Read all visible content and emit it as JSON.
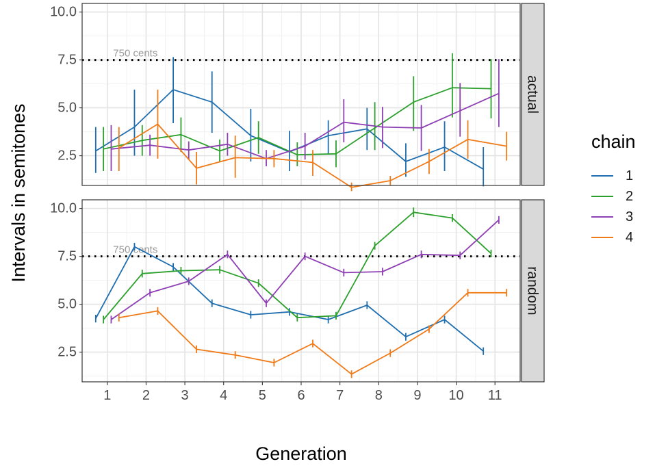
{
  "chart_data": {
    "type": "line",
    "xlabel": "Generation",
    "ylabel": "Intervals in semitones",
    "x_ticks": [
      1,
      2,
      3,
      4,
      5,
      6,
      7,
      8,
      9,
      10,
      11
    ],
    "x_tick_labels": [
      "1",
      "2",
      "3",
      "4",
      "5",
      "6",
      "7",
      "8",
      "9",
      "10",
      "11"
    ],
    "xlim": [
      0.35,
      11.65
    ],
    "y_ticks": [
      2.5,
      5.0,
      7.5,
      10.0
    ],
    "y_tick_labels": [
      "2.5",
      "5.0",
      "7.5",
      "10.0"
    ],
    "grid": true,
    "legend": {
      "title": "chain",
      "position": "right",
      "entries": [
        {
          "label": "1",
          "color": "#1f6fb0"
        },
        {
          "label": "2",
          "color": "#2ca02c"
        },
        {
          "label": "3",
          "color": "#8e3fb3"
        },
        {
          "label": "4",
          "color": "#f07a17"
        }
      ]
    },
    "colors": {
      "1": "#1f6fb0",
      "2": "#2ca02c",
      "3": "#8e3fb3",
      "4": "#f07a17"
    },
    "x_offsets": {
      "1": -0.3,
      "2": -0.1,
      "3": 0.1,
      "4": 0.3
    },
    "reference_line": {
      "y": 7.5,
      "label": "750 cents",
      "style": "dotted"
    },
    "panels": [
      {
        "strip": "actual",
        "ylim": [
          0.95,
          10.45
        ],
        "series": [
          {
            "name": "1",
            "points": [
              {
                "x": 1,
                "y": 2.75,
                "lo": 1.6,
                "hi": 4.0
              },
              {
                "x": 2,
                "y": 4.0,
                "lo": 2.5,
                "hi": 5.95
              },
              {
                "x": 3,
                "y": 5.95,
                "lo": 4.2,
                "hi": 7.65
              },
              {
                "x": 4,
                "y": 5.3,
                "lo": 3.7,
                "hi": 6.9
              },
              {
                "x": 5,
                "y": 3.55,
                "lo": 2.2,
                "hi": 4.95
              },
              {
                "x": 6,
                "y": 2.7,
                "lo": 1.7,
                "hi": 3.8
              },
              {
                "x": 7,
                "y": 3.55,
                "lo": 2.6,
                "hi": 4.35
              },
              {
                "x": 8,
                "y": 3.9,
                "lo": 2.8,
                "hi": 5.0
              },
              {
                "x": 9,
                "y": 2.2,
                "lo": 1.4,
                "hi": 3.15
              },
              {
                "x": 10,
                "y": 2.95,
                "lo": 1.7,
                "hi": 4.3
              },
              {
                "x": 11,
                "y": 1.8,
                "lo": 0.9,
                "hi": 2.95
              }
            ]
          },
          {
            "name": "2",
            "points": [
              {
                "x": 1,
                "y": 2.85,
                "lo": 1.7,
                "hi": 4.0
              },
              {
                "x": 2,
                "y": 3.3,
                "lo": 2.5,
                "hi": 4.1
              },
              {
                "x": 3,
                "y": 3.6,
                "lo": 2.7,
                "hi": 4.5
              },
              {
                "x": 4,
                "y": 2.75,
                "lo": 2.2,
                "hi": 3.35
              },
              {
                "x": 5,
                "y": 3.45,
                "lo": 2.6,
                "hi": 4.3
              },
              {
                "x": 6,
                "y": 2.55,
                "lo": 1.95,
                "hi": 3.2
              },
              {
                "x": 7,
                "y": 2.6,
                "lo": 1.9,
                "hi": 3.3
              },
              {
                "x": 8,
                "y": 3.95,
                "lo": 2.8,
                "hi": 5.3
              },
              {
                "x": 9,
                "y": 5.3,
                "lo": 3.8,
                "hi": 6.65
              },
              {
                "x": 10,
                "y": 6.05,
                "lo": 4.5,
                "hi": 7.85
              },
              {
                "x": 11,
                "y": 6.0,
                "lo": 4.45,
                "hi": 7.55
              }
            ]
          },
          {
            "name": "3",
            "points": [
              {
                "x": 1,
                "y": 2.85,
                "lo": 1.7,
                "hi": 4.1
              },
              {
                "x": 2,
                "y": 3.05,
                "lo": 2.5,
                "hi": 3.6
              },
              {
                "x": 3,
                "y": 2.8,
                "lo": 2.3,
                "hi": 3.25
              },
              {
                "x": 4,
                "y": 3.1,
                "lo": 2.5,
                "hi": 3.7
              },
              {
                "x": 5,
                "y": 2.35,
                "lo": 1.95,
                "hi": 2.8
              },
              {
                "x": 6,
                "y": 3.0,
                "lo": 2.3,
                "hi": 3.7
              },
              {
                "x": 7,
                "y": 4.25,
                "lo": 3.2,
                "hi": 5.45
              },
              {
                "x": 8,
                "y": 4.0,
                "lo": 2.9,
                "hi": 5.05
              },
              {
                "x": 9,
                "y": 3.95,
                "lo": 2.75,
                "hi": 5.15
              },
              {
                "x": 10,
                "y": 4.85,
                "lo": 3.5,
                "hi": 6.3
              },
              {
                "x": 11,
                "y": 5.75,
                "lo": 4.0,
                "hi": 7.55
              }
            ]
          },
          {
            "name": "4",
            "points": [
              {
                "x": 1,
                "y": 2.9,
                "lo": 1.7,
                "hi": 4.0
              },
              {
                "x": 2,
                "y": 4.15,
                "lo": 2.35,
                "hi": 5.95
              },
              {
                "x": 3,
                "y": 1.85,
                "lo": 1.0,
                "hi": 2.7
              },
              {
                "x": 4,
                "y": 2.4,
                "lo": 1.35,
                "hi": 3.55
              },
              {
                "x": 5,
                "y": 2.35,
                "lo": 1.9,
                "hi": 2.8
              },
              {
                "x": 6,
                "y": 2.15,
                "lo": 1.45,
                "hi": 2.8
              },
              {
                "x": 7,
                "y": 0.85,
                "lo": 0.65,
                "hi": 1.1
              },
              {
                "x": 8,
                "y": 1.2,
                "lo": 0.95,
                "hi": 1.45
              },
              {
                "x": 9,
                "y": 2.2,
                "lo": 1.55,
                "hi": 2.85
              },
              {
                "x": 10,
                "y": 3.35,
                "lo": 2.35,
                "hi": 4.35
              },
              {
                "x": 11,
                "y": 3.0,
                "lo": 2.25,
                "hi": 3.75
              }
            ]
          }
        ]
      },
      {
        "strip": "random",
        "ylim": [
          0.95,
          10.45
        ],
        "series": [
          {
            "name": "1",
            "points": [
              {
                "x": 1,
                "y": 4.25,
                "lo": 4.05,
                "hi": 4.45
              },
              {
                "x": 2,
                "y": 8.0,
                "lo": 7.8,
                "hi": 8.2
              },
              {
                "x": 3,
                "y": 6.95,
                "lo": 6.75,
                "hi": 7.15
              },
              {
                "x": 4,
                "y": 5.05,
                "lo": 4.85,
                "hi": 5.25
              },
              {
                "x": 5,
                "y": 4.45,
                "lo": 4.25,
                "hi": 4.65
              },
              {
                "x": 6,
                "y": 4.6,
                "lo": 4.4,
                "hi": 4.8
              },
              {
                "x": 7,
                "y": 4.2,
                "lo": 4.0,
                "hi": 4.4
              },
              {
                "x": 8,
                "y": 4.95,
                "lo": 4.75,
                "hi": 5.15
              },
              {
                "x": 9,
                "y": 3.3,
                "lo": 3.1,
                "hi": 3.5
              },
              {
                "x": 10,
                "y": 4.2,
                "lo": 4.0,
                "hi": 4.4
              },
              {
                "x": 11,
                "y": 2.55,
                "lo": 2.35,
                "hi": 2.75
              }
            ]
          },
          {
            "name": "2",
            "points": [
              {
                "x": 1,
                "y": 4.2,
                "lo": 4.0,
                "hi": 4.4
              },
              {
                "x": 2,
                "y": 6.6,
                "lo": 6.4,
                "hi": 6.8
              },
              {
                "x": 3,
                "y": 6.75,
                "lo": 6.55,
                "hi": 6.95
              },
              {
                "x": 4,
                "y": 6.8,
                "lo": 6.6,
                "hi": 7.0
              },
              {
                "x": 5,
                "y": 6.1,
                "lo": 5.9,
                "hi": 6.3
              },
              {
                "x": 6,
                "y": 4.3,
                "lo": 4.1,
                "hi": 4.5
              },
              {
                "x": 7,
                "y": 4.4,
                "lo": 4.2,
                "hi": 4.6
              },
              {
                "x": 8,
                "y": 8.05,
                "lo": 7.85,
                "hi": 8.25
              },
              {
                "x": 9,
                "y": 9.8,
                "lo": 9.55,
                "hi": 10.05
              },
              {
                "x": 10,
                "y": 9.5,
                "lo": 9.3,
                "hi": 9.7
              },
              {
                "x": 11,
                "y": 7.65,
                "lo": 7.45,
                "hi": 7.85
              }
            ]
          },
          {
            "name": "3",
            "points": [
              {
                "x": 1,
                "y": 4.2,
                "lo": 4.0,
                "hi": 4.4
              },
              {
                "x": 2,
                "y": 5.6,
                "lo": 5.4,
                "hi": 5.8
              },
              {
                "x": 3,
                "y": 6.2,
                "lo": 6.0,
                "hi": 6.4
              },
              {
                "x": 4,
                "y": 7.6,
                "lo": 7.4,
                "hi": 7.8
              },
              {
                "x": 5,
                "y": 5.05,
                "lo": 4.85,
                "hi": 5.25
              },
              {
                "x": 6,
                "y": 7.5,
                "lo": 7.3,
                "hi": 7.7
              },
              {
                "x": 7,
                "y": 6.65,
                "lo": 6.45,
                "hi": 6.85
              },
              {
                "x": 8,
                "y": 6.7,
                "lo": 6.5,
                "hi": 6.9
              },
              {
                "x": 9,
                "y": 7.6,
                "lo": 7.4,
                "hi": 7.8
              },
              {
                "x": 10,
                "y": 7.55,
                "lo": 7.35,
                "hi": 7.75
              },
              {
                "x": 11,
                "y": 9.4,
                "lo": 9.2,
                "hi": 9.6
              }
            ]
          },
          {
            "name": "4",
            "points": [
              {
                "x": 1,
                "y": 4.3,
                "lo": 4.1,
                "hi": 4.5
              },
              {
                "x": 2,
                "y": 4.65,
                "lo": 4.45,
                "hi": 4.85
              },
              {
                "x": 3,
                "y": 2.65,
                "lo": 2.45,
                "hi": 2.85
              },
              {
                "x": 4,
                "y": 2.35,
                "lo": 2.15,
                "hi": 2.55
              },
              {
                "x": 5,
                "y": 1.95,
                "lo": 1.75,
                "hi": 2.15
              },
              {
                "x": 6,
                "y": 2.95,
                "lo": 2.75,
                "hi": 3.15
              },
              {
                "x": 7,
                "y": 1.35,
                "lo": 1.15,
                "hi": 1.55
              },
              {
                "x": 8,
                "y": 2.45,
                "lo": 2.25,
                "hi": 2.65
              },
              {
                "x": 9,
                "y": 3.7,
                "lo": 3.5,
                "hi": 3.9
              },
              {
                "x": 10,
                "y": 5.6,
                "lo": 5.4,
                "hi": 5.8
              },
              {
                "x": 11,
                "y": 5.6,
                "lo": 5.4,
                "hi": 5.8
              }
            ]
          }
        ]
      }
    ]
  }
}
